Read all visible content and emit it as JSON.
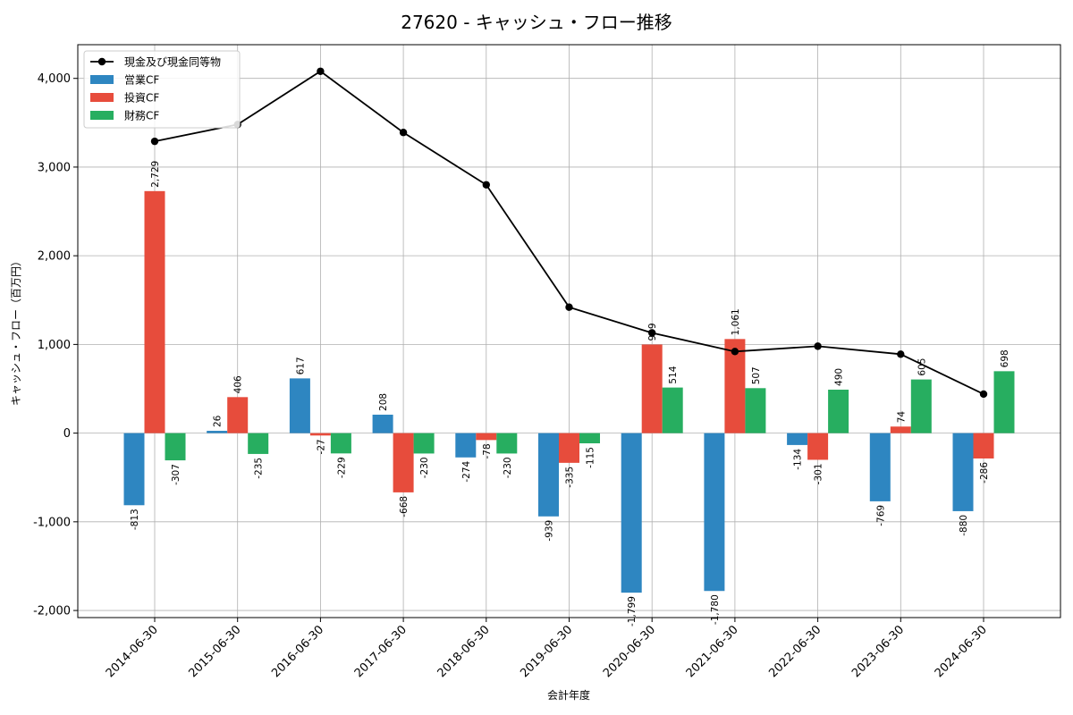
{
  "chart_data": {
    "type": "bar",
    "title": "27620 - キャッシュ・フロー推移",
    "xlabel": "会計年度",
    "ylabel": "キャッシュ・フロー（百万円）",
    "categories": [
      "2014-06-30",
      "2015-06-30",
      "2016-06-30",
      "2017-06-30",
      "2018-06-30",
      "2019-06-30",
      "2020-06-30",
      "2021-06-30",
      "2022-06-30",
      "2023-06-30",
      "2024-06-30"
    ],
    "ylim": [
      -2080,
      4380
    ],
    "yticks": [
      -2000,
      -1000,
      0,
      1000,
      2000,
      3000,
      4000
    ],
    "ytick_labels": [
      "-2,000",
      "-1,000",
      "0",
      "1,000",
      "2,000",
      "3,000",
      "4,000"
    ],
    "grid": true,
    "legend_position": "top-left",
    "series": [
      {
        "name": "営業CF",
        "kind": "bar",
        "color": "#2e86c1",
        "values": [
          -813,
          26,
          617,
          208,
          -274,
          -939,
          -1799,
          -1780,
          -134,
          -769,
          -880
        ],
        "labels": [
          "-813",
          "26",
          "617",
          "208",
          "-274",
          "-939",
          "-1,799",
          "-1,780",
          "-134",
          "-769",
          "-880"
        ]
      },
      {
        "name": "投資CF",
        "kind": "bar",
        "color": "#e74c3c",
        "values": [
          2729,
          406,
          -27,
          -668,
          -78,
          -335,
          999,
          1061,
          -301,
          74,
          -286
        ],
        "labels": [
          "2,729",
          "406",
          "-27",
          "-668",
          "-78",
          "-335",
          "999",
          "1,061",
          "-301",
          "74",
          "-286"
        ]
      },
      {
        "name": "財務CF",
        "kind": "bar",
        "color": "#27ae60",
        "values": [
          -307,
          -235,
          -229,
          -230,
          -230,
          -115,
          514,
          507,
          490,
          605,
          698
        ],
        "labels": [
          "-307",
          "-235",
          "-229",
          "-230",
          "-230",
          "-115",
          "514",
          "507",
          "490",
          "605",
          "698"
        ]
      },
      {
        "name": "現金及び現金同等物",
        "kind": "line",
        "color": "#000000",
        "values": [
          3290,
          3480,
          4080,
          3390,
          2800,
          1420,
          1130,
          920,
          980,
          890,
          440
        ]
      }
    ]
  }
}
